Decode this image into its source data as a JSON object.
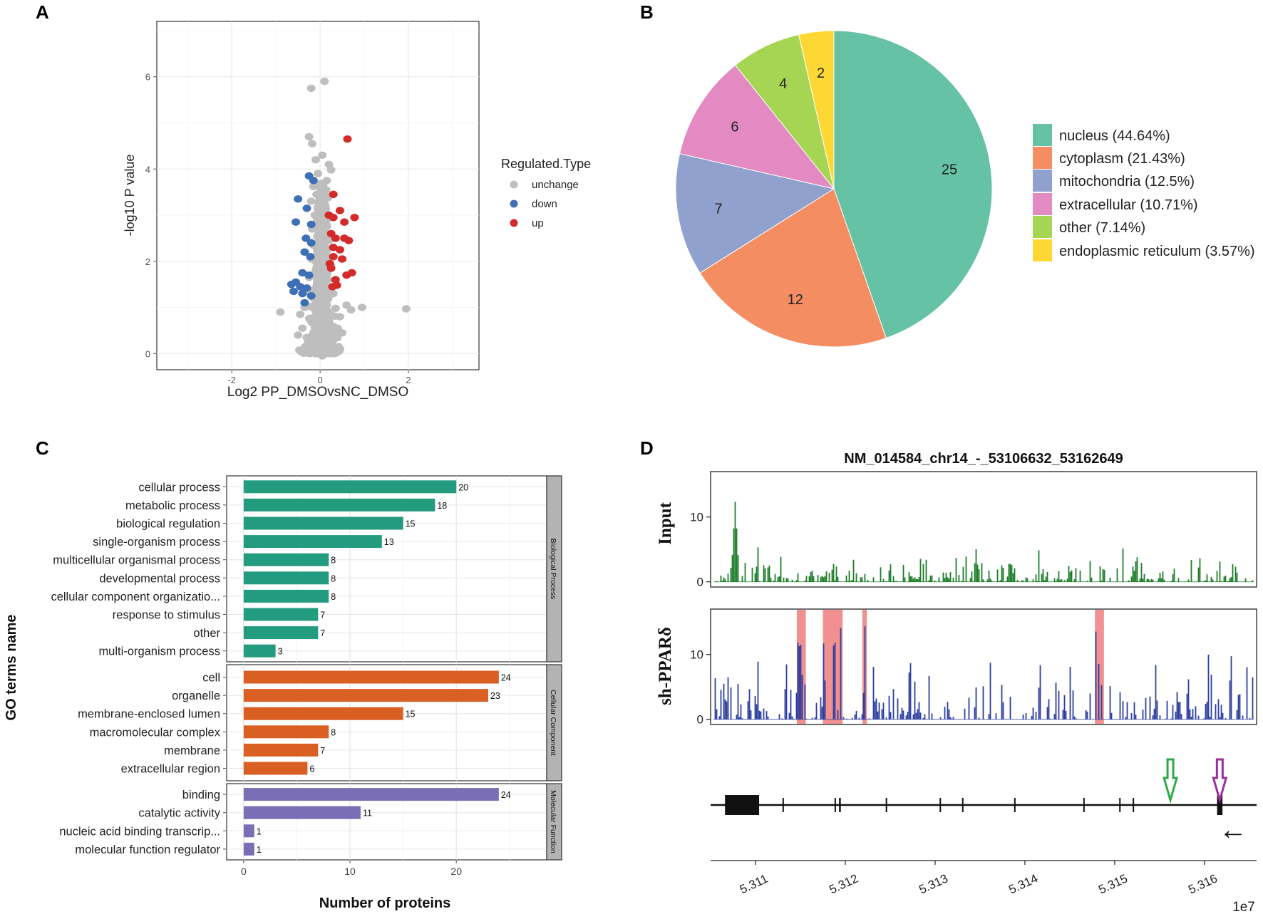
{
  "panel_labels": {
    "a": "A",
    "b": "B",
    "c": "C",
    "d": "D"
  },
  "chart_data": [
    {
      "id": "A",
      "type": "scatter",
      "title": "",
      "xlabel": "Log2 PP_DMSOvsNC_DMSO",
      "ylabel": "-log10 P value",
      "xlim": [
        -3.7,
        3.6
      ],
      "ylim": [
        -0.35,
        7.2
      ],
      "xticks": [
        -2,
        0,
        2
      ],
      "yticks": [
        0,
        2,
        4,
        6
      ],
      "grid": true,
      "legend": {
        "title": "Regulated.Type",
        "position": "right",
        "entries": [
          {
            "name": "unchange",
            "color": "#bebebe"
          },
          {
            "name": "down",
            "color": "#3f6fb5"
          },
          {
            "name": "up",
            "color": "#d42a2a"
          }
        ]
      },
      "series": [
        {
          "name": "unchange",
          "color": "#bebebe",
          "points": [
            [
              0.1,
              5.9
            ],
            [
              -0.2,
              5.75
            ],
            [
              -0.25,
              4.7
            ],
            [
              -0.18,
              4.55
            ],
            [
              0.05,
              4.3
            ],
            [
              -0.1,
              4.2
            ],
            [
              0.2,
              4.1
            ],
            [
              0.25,
              3.98
            ],
            [
              -0.05,
              3.9
            ],
            [
              0.15,
              3.75
            ],
            [
              -0.15,
              3.62
            ],
            [
              0.05,
              3.55
            ],
            [
              -0.08,
              3.45
            ],
            [
              0.18,
              3.38
            ],
            [
              -0.2,
              3.3
            ],
            [
              0.1,
              3.2
            ],
            [
              0.0,
              3.1
            ],
            [
              -0.12,
              3.0
            ],
            [
              0.22,
              2.95
            ],
            [
              -0.05,
              2.85
            ],
            [
              0.12,
              2.75
            ],
            [
              -0.18,
              2.7
            ],
            [
              0.05,
              2.6
            ],
            [
              -0.02,
              2.5
            ],
            [
              0.2,
              2.45
            ],
            [
              -0.15,
              2.35
            ],
            [
              0.08,
              2.3
            ],
            [
              -0.06,
              2.2
            ],
            [
              0.15,
              2.1
            ],
            [
              -0.2,
              2.05
            ],
            [
              0.0,
              1.95
            ],
            [
              0.25,
              1.9
            ],
            [
              -0.1,
              1.8
            ],
            [
              0.1,
              1.72
            ],
            [
              -0.25,
              1.65
            ],
            [
              0.18,
              1.6
            ],
            [
              -0.05,
              1.5
            ],
            [
              0.05,
              1.42
            ],
            [
              -0.3,
              1.35
            ],
            [
              0.3,
              1.3
            ],
            [
              -0.15,
              1.2
            ],
            [
              0.15,
              1.15
            ],
            [
              0.0,
              1.05
            ],
            [
              -0.35,
              1.0
            ],
            [
              0.35,
              0.98
            ],
            [
              -0.9,
              0.9
            ],
            [
              0.7,
              0.95
            ],
            [
              0.95,
              1.0
            ],
            [
              1.95,
              0.97
            ],
            [
              0.6,
              1.05
            ],
            [
              -0.45,
              0.85
            ],
            [
              0.45,
              0.8
            ],
            [
              -0.2,
              0.75
            ],
            [
              0.2,
              0.7
            ],
            [
              0.0,
              0.62
            ],
            [
              -0.4,
              0.55
            ],
            [
              0.4,
              0.55
            ],
            [
              -0.1,
              0.45
            ],
            [
              0.1,
              0.4
            ],
            [
              -0.3,
              0.35
            ],
            [
              0.3,
              0.3
            ],
            [
              0.0,
              0.25
            ],
            [
              -0.15,
              0.18
            ],
            [
              0.15,
              0.12
            ],
            [
              0.0,
              0.05
            ],
            [
              -0.05,
              0.0
            ],
            [
              0.05,
              -0.05
            ],
            [
              0.5,
              0.45
            ],
            [
              -0.5,
              0.4
            ],
            [
              0.25,
              0.2
            ]
          ]
        },
        {
          "name": "down",
          "color": "#3f6fb5",
          "points": [
            [
              -0.25,
              3.85
            ],
            [
              -0.15,
              3.75
            ],
            [
              -0.5,
              3.35
            ],
            [
              -0.3,
              3.15
            ],
            [
              -0.55,
              2.85
            ],
            [
              -0.2,
              2.8
            ],
            [
              -0.32,
              2.5
            ],
            [
              -0.2,
              2.4
            ],
            [
              -0.35,
              2.2
            ],
            [
              -0.22,
              2.1
            ],
            [
              -0.4,
              1.75
            ],
            [
              -0.25,
              1.7
            ],
            [
              -0.65,
              1.5
            ],
            [
              -0.55,
              1.55
            ],
            [
              -0.45,
              1.45
            ],
            [
              -0.3,
              1.42
            ],
            [
              -0.6,
              1.35
            ],
            [
              -0.4,
              1.3
            ],
            [
              -0.2,
              1.25
            ],
            [
              -0.35,
              1.1
            ]
          ]
        },
        {
          "name": "up",
          "color": "#d42a2a",
          "points": [
            [
              0.62,
              4.65
            ],
            [
              0.3,
              3.45
            ],
            [
              0.45,
              3.1
            ],
            [
              0.2,
              3.0
            ],
            [
              0.3,
              2.95
            ],
            [
              0.55,
              2.85
            ],
            [
              0.78,
              2.95
            ],
            [
              0.25,
              2.6
            ],
            [
              0.35,
              2.5
            ],
            [
              0.55,
              2.5
            ],
            [
              0.65,
              2.45
            ],
            [
              0.3,
              2.3
            ],
            [
              0.45,
              2.25
            ],
            [
              0.3,
              2.1
            ],
            [
              0.5,
              2.05
            ],
            [
              0.22,
              1.95
            ],
            [
              0.6,
              1.7
            ],
            [
              0.72,
              1.75
            ],
            [
              0.28,
              1.45
            ],
            [
              0.38,
              1.48
            ],
            [
              0.25,
              1.85
            ],
            [
              0.35,
              1.6
            ]
          ]
        }
      ]
    },
    {
      "id": "B",
      "type": "pie",
      "title": "",
      "slices": [
        {
          "label": "nucleus (44.64%)",
          "value": 25,
          "color": "#66c2a5"
        },
        {
          "label": "cytoplasm (21.43%)",
          "value": 12,
          "color": "#f58d62"
        },
        {
          "label": "mitochondria (12.5%)",
          "value": 7,
          "color": "#8fa1cc"
        },
        {
          "label": "extracellular (10.71%)",
          "value": 6,
          "color": "#e38ac2"
        },
        {
          "label": "other (7.14%)",
          "value": 4,
          "color": "#a5d553"
        },
        {
          "label": "endoplasmic reticulum (3.57%)",
          "value": 2,
          "color": "#fdd835"
        }
      ],
      "legend": "right"
    },
    {
      "id": "C",
      "type": "bar",
      "orientation": "horizontal",
      "xlabel": "Number of proteins",
      "ylabel": "GO terms name",
      "xlim": [
        -1.6,
        28.5
      ],
      "xticks": [
        0,
        10,
        20
      ],
      "grid": true,
      "groups": [
        {
          "name": "Biological Process",
          "color": "#239b7e",
          "categories": [
            "cellular process",
            "metabolic process",
            "biological regulation",
            "single-organism process",
            "multicellular organismal process",
            "developmental process",
            "cellular component organizatio...",
            "response to stimulus",
            "other",
            "multi-organism process"
          ],
          "values": [
            20,
            18,
            15,
            13,
            8,
            8,
            8,
            7,
            7,
            3
          ]
        },
        {
          "name": "Cellular Component",
          "color": "#da5f22",
          "categories": [
            "cell",
            "organelle",
            "membrane-enclosed lumen",
            "macromolecular complex",
            "membrane",
            "extracellular region"
          ],
          "values": [
            24,
            23,
            15,
            8,
            7,
            6
          ]
        },
        {
          "name": "Molecular Function",
          "color": "#7a6fb6",
          "categories": [
            "binding",
            "catalytic activity",
            "nucleic acid binding transcrip...",
            "molecular function regulator"
          ],
          "values": [
            24,
            11,
            1,
            1
          ]
        }
      ]
    },
    {
      "id": "D",
      "type": "area",
      "title": "NM_014584_chr14_-_53106632_53162649",
      "xlim": [
        53105000,
        53165800
      ],
      "xticks": [
        5.311,
        5.312,
        5.313,
        5.314,
        5.315,
        5.316
      ],
      "x_scale_label": "1e7",
      "tracks": [
        {
          "name": "Input",
          "color": "#1e7d2a",
          "ylim": [
            -0.8,
            17
          ],
          "yticks": [
            0,
            10
          ],
          "peak_max": 12.3
        },
        {
          "name": "sh-PPARδ",
          "color": "#2e3f9e",
          "ylim": [
            -0.8,
            17
          ],
          "yticks": [
            0,
            10
          ],
          "peak_max": 14.8,
          "highlight_regions": [
            [
              53114600,
              53115600
            ],
            [
              53117500,
              53119700
            ],
            [
              53121900,
              53122400
            ],
            [
              53147800,
              53148800
            ]
          ],
          "highlight_color": "#ef8a8a"
        }
      ],
      "gene_model": {
        "strand": "-",
        "direction_arrow": "←",
        "exons": [
          [
            53106600,
            53110400
          ],
          [
            53113000,
            53113100
          ],
          [
            53118800,
            53118900
          ],
          [
            53119300,
            53119500
          ],
          [
            53124500,
            53124600
          ],
          [
            53130500,
            53130600
          ],
          [
            53133000,
            53133100
          ],
          [
            53138800,
            53138950
          ],
          [
            53146500,
            53146600
          ],
          [
            53150500,
            53150600
          ],
          [
            53152000,
            53152100
          ],
          [
            53161400,
            53162000
          ]
        ],
        "markers": [
          {
            "color": "#2ea84a",
            "x": 53156200
          },
          {
            "color": "#9a2f9a",
            "x": 53161700
          }
        ]
      }
    }
  ]
}
